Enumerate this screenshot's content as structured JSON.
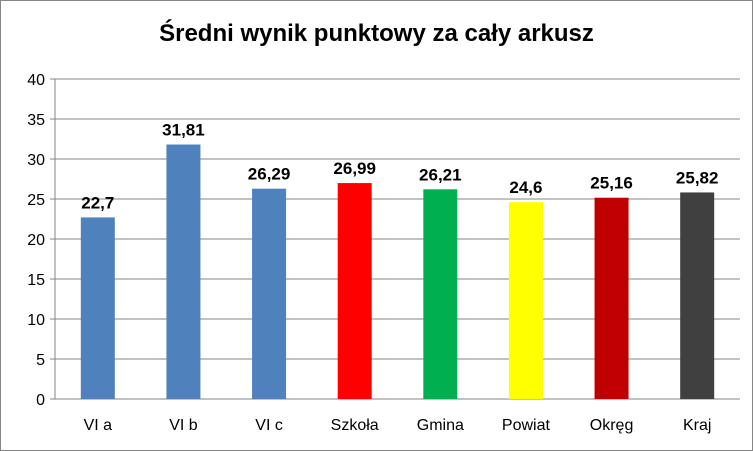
{
  "chart_data": {
    "type": "bar",
    "title": "Średni wynik punktowy za cały arkusz",
    "categories": [
      "VI a",
      "VI b",
      "VI c",
      "Szkoła",
      "Gmina",
      "Powiat",
      "Okręg",
      "Kraj"
    ],
    "values": [
      22.7,
      31.81,
      26.29,
      26.99,
      26.21,
      24.6,
      25.16,
      25.82
    ],
    "value_labels": [
      "22,7",
      "31,81",
      "26,29",
      "26,99",
      "26,21",
      "24,6",
      "25,16",
      "25,82"
    ],
    "colors": [
      "#4F81BD",
      "#4F81BD",
      "#4F81BD",
      "#FF0000",
      "#00B050",
      "#FFFF00",
      "#C00000",
      "#404040"
    ],
    "y_ticks": [
      "0",
      "5",
      "10",
      "15",
      "20",
      "25",
      "30",
      "35",
      "40"
    ],
    "ylim": [
      0,
      40
    ],
    "grid": true,
    "legend": "none"
  }
}
